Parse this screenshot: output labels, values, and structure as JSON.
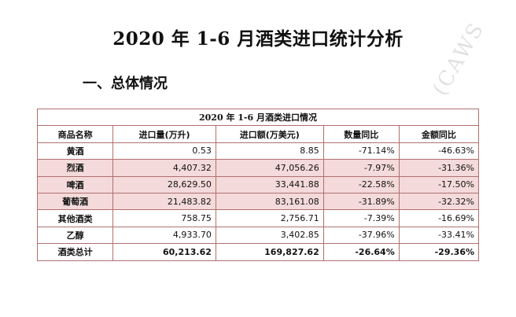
{
  "title": "2020 年 1-6 月酒类进口统计分析",
  "section_heading": "一、总体情况",
  "watermark": "(CAWS",
  "table": {
    "caption": "2020 年 1-6 月酒类进口情况",
    "headers": [
      "商品名称",
      "进口量(万升)",
      "进口额(万美元)",
      "数量同比",
      "金额同比"
    ],
    "rows": [
      {
        "name": "黄酒",
        "volume": "0.53",
        "value": "8.85",
        "qty_yoy": "-71.14%",
        "amt_yoy": "-46.63%"
      },
      {
        "name": "烈酒",
        "volume": "4,407.32",
        "value": "47,056.26",
        "qty_yoy": "-7.97%",
        "amt_yoy": "-31.36%"
      },
      {
        "name": "啤酒",
        "volume": "28,629.50",
        "value": "33,441.88",
        "qty_yoy": "-22.58%",
        "amt_yoy": "-17.50%"
      },
      {
        "name": "葡萄酒",
        "volume": "21,483.82",
        "value": "83,161.08",
        "qty_yoy": "-31.89%",
        "amt_yoy": "-32.32%"
      },
      {
        "name": "其他酒类",
        "volume": "758.75",
        "value": "2,756.71",
        "qty_yoy": "-7.39%",
        "amt_yoy": "-16.69%"
      },
      {
        "name": "乙醇",
        "volume": "4,933.70",
        "value": "3,402.85",
        "qty_yoy": "-37.96%",
        "amt_yoy": "-33.41%"
      },
      {
        "name": "酒类总计",
        "volume": "60,213.62",
        "value": "169,827.62",
        "qty_yoy": "-26.64%",
        "amt_yoy": "-29.36%"
      }
    ],
    "colors": {
      "border": "#b07070",
      "highlight": "#f4dada"
    }
  }
}
